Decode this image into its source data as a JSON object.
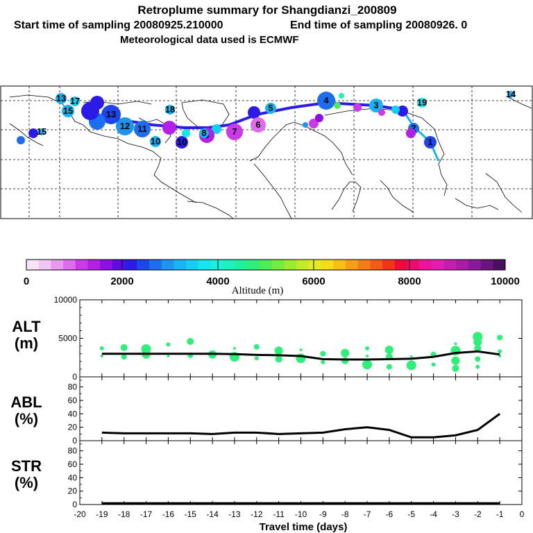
{
  "header": {
    "title": "Retroplume summary for Shangdianzi_200809",
    "line2_start": "Start time of sampling 20080925.210000",
    "line2_end": "End time of sampling 20080926.     0",
    "line3": "Meteorological data used is ECMWF"
  },
  "colorbar": {
    "ticks": [
      "0",
      "2000",
      "4000",
      "6000",
      "8000",
      "10000"
    ],
    "label": "Altitude (m)",
    "colors": [
      "#f7e4f7",
      "#f1c6f3",
      "#e99af0",
      "#de6ced",
      "#cc3ae8",
      "#b51ee6",
      "#8f0ee6",
      "#5d0ce6",
      "#2c1ae8",
      "#1a46ec",
      "#1c6ef0",
      "#1c94f2",
      "#16b4f4",
      "#12d0f4",
      "#14e6ee",
      "#18f2dc",
      "#1af4bc",
      "#1ef29a",
      "#2cf078",
      "#4cee56",
      "#74ec3c",
      "#9cec2c",
      "#c4ec24",
      "#e6ea1e",
      "#f6dc16",
      "#f8c014",
      "#f89e14",
      "#f87c14",
      "#f65a16",
      "#f43418",
      "#f00a3a",
      "#f00a70",
      "#f0129c",
      "#e41cb0",
      "#c81cae",
      "#ac1aa6",
      "#8c189c",
      "#6a1480",
      "#4c0e5e"
    ]
  },
  "map": {
    "track_labels": [
      "1",
      "2",
      "3",
      "4",
      "5",
      "6",
      "7",
      "8",
      "9",
      "10",
      "11",
      "12",
      "13",
      "14",
      "15",
      "16",
      "17",
      "18",
      "19"
    ]
  },
  "chart_data": [
    {
      "type": "line",
      "panel_label": [
        "ALT",
        "(m)"
      ],
      "title": "ALT (m)",
      "x": [
        -19,
        -18,
        -17,
        -16,
        -15,
        -14,
        -13,
        -12,
        -11,
        -10,
        -9,
        -8,
        -7,
        -6,
        -5,
        -4,
        -3,
        -2,
        -1
      ],
      "values": [
        3000,
        3000,
        3000,
        3000,
        3000,
        3000,
        2950,
        2850,
        2800,
        2700,
        2300,
        2250,
        2250,
        2300,
        2350,
        2600,
        3100,
        3300,
        2900
      ],
      "xlim": [
        -20,
        0
      ],
      "ylim": [
        0,
        10000
      ],
      "yticks": [
        "0",
        "5000",
        "10000"
      ],
      "plume_points": [
        {
          "x": -19,
          "y": 2700
        },
        {
          "x": -19,
          "y": 3700
        },
        {
          "x": -18,
          "y": 2600
        },
        {
          "x": -18,
          "y": 3800
        },
        {
          "x": -17,
          "y": 2900
        },
        {
          "x": -17,
          "y": 3600
        },
        {
          "x": -16,
          "y": 2700
        },
        {
          "x": -16,
          "y": 4200
        },
        {
          "x": -15,
          "y": 2800
        },
        {
          "x": -15,
          "y": 4600
        },
        {
          "x": -14,
          "y": 2900
        },
        {
          "x": -13,
          "y": 2600
        },
        {
          "x": -13,
          "y": 3700
        },
        {
          "x": -12,
          "y": 2400
        },
        {
          "x": -12,
          "y": 3900
        },
        {
          "x": -11,
          "y": 2300
        },
        {
          "x": -11,
          "y": 3400
        },
        {
          "x": -10,
          "y": 2400
        },
        {
          "x": -10,
          "y": 3500
        },
        {
          "x": -9,
          "y": 1900
        },
        {
          "x": -9,
          "y": 3000
        },
        {
          "x": -8,
          "y": 2100
        },
        {
          "x": -8,
          "y": 3100
        },
        {
          "x": -7,
          "y": 1600
        },
        {
          "x": -7,
          "y": 2700
        },
        {
          "x": -7,
          "y": 3700
        },
        {
          "x": -6,
          "y": 1300
        },
        {
          "x": -6,
          "y": 2600
        },
        {
          "x": -6,
          "y": 3500
        },
        {
          "x": -5,
          "y": 1500
        },
        {
          "x": -5,
          "y": 2600
        },
        {
          "x": -4,
          "y": 1600
        },
        {
          "x": -4,
          "y": 2900
        },
        {
          "x": -3,
          "y": 1100
        },
        {
          "x": -3,
          "y": 2100
        },
        {
          "x": -3,
          "y": 3400
        },
        {
          "x": -3,
          "y": 4300
        },
        {
          "x": -2,
          "y": 1300
        },
        {
          "x": -2,
          "y": 2300
        },
        {
          "x": -2,
          "y": 3700
        },
        {
          "x": -2,
          "y": 4500
        },
        {
          "x": -2,
          "y": 5200
        },
        {
          "x": -1,
          "y": 2700
        },
        {
          "x": -1,
          "y": 3300
        },
        {
          "x": -1,
          "y": 5100
        }
      ]
    },
    {
      "type": "line",
      "panel_label": [
        "ABL",
        "(%)"
      ],
      "title": "ABL (%)",
      "x": [
        -19,
        -18,
        -17,
        -16,
        -15,
        -14,
        -13,
        -12,
        -11,
        -10,
        -9,
        -8,
        -7,
        -6,
        -5,
        -4,
        -3,
        -2,
        -1
      ],
      "values": [
        12,
        11,
        11,
        11,
        11,
        10,
        12,
        12,
        10,
        11,
        12,
        17,
        20,
        16,
        5,
        5,
        8,
        16,
        40
      ],
      "xlim": [
        -20,
        0
      ],
      "ylim": [
        0,
        95
      ],
      "yticks": [
        "0",
        "20",
        "40",
        "60",
        "80"
      ]
    },
    {
      "type": "line",
      "panel_label": [
        "STR",
        "(%)"
      ],
      "title": "STR (%)",
      "x": [
        -19,
        -18,
        -17,
        -16,
        -15,
        -14,
        -13,
        -12,
        -11,
        -10,
        -9,
        -8,
        -7,
        -6,
        -5,
        -4,
        -3,
        -2,
        -1
      ],
      "values": [
        2,
        2,
        2,
        2,
        2,
        2,
        2,
        2,
        2,
        2,
        2,
        2,
        2,
        2,
        2,
        2,
        2,
        2,
        2
      ],
      "xlim": [
        -20,
        0
      ],
      "ylim": [
        0,
        95
      ],
      "yticks": [
        "0",
        "20",
        "40",
        "60",
        "80"
      ],
      "xlabel": "Travel time (days)",
      "xticks": [
        "-20",
        "-19",
        "-18",
        "-17",
        "-16",
        "-15",
        "-14",
        "-13",
        "-12",
        "-11",
        "-10",
        "-9",
        "-8",
        "-7",
        "-6",
        "-5",
        "-4",
        "-3",
        "-2",
        "-1",
        "0"
      ]
    }
  ]
}
